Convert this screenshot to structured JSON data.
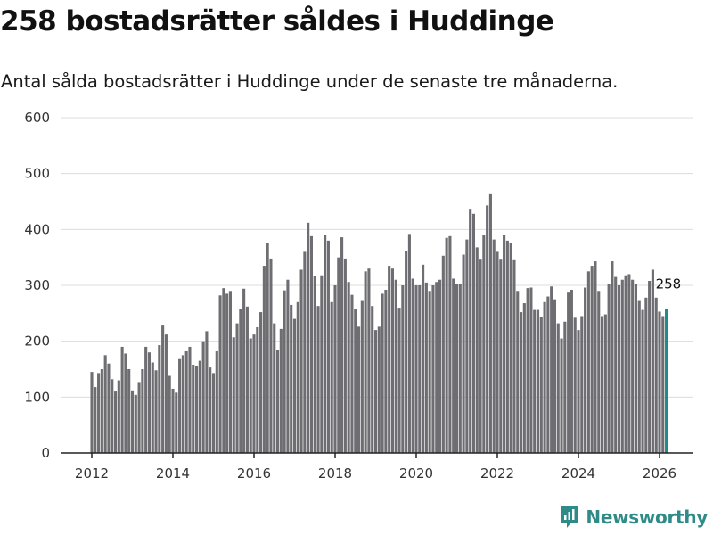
{
  "title": "258 bostadsrätter såldes i Huddinge",
  "subtitle": "Antal sålda bostadsrätter i Huddinge under de senaste tre månaderna.",
  "brand": {
    "name": "Newsworthy",
    "icon": "newsworthy-logo-icon",
    "color": "#2e8b87"
  },
  "chart_data": {
    "type": "bar",
    "ylim": [
      0,
      600
    ],
    "yticks": [
      0,
      100,
      200,
      300,
      400,
      500,
      600
    ],
    "xticks": [
      2012,
      2014,
      2016,
      2018,
      2020,
      2022,
      2024,
      2026
    ],
    "x_start_year": 2012,
    "x_start_month": 1,
    "x_end_year": 2026,
    "x_end_month": 2,
    "bar_color": "#6e6d72",
    "highlight_color": "#1f8a87",
    "highlight_label": "258",
    "grid": true,
    "values": [
      145,
      118,
      143,
      150,
      175,
      160,
      132,
      110,
      130,
      190,
      178,
      150,
      112,
      104,
      127,
      150,
      190,
      180,
      162,
      148,
      193,
      228,
      212,
      138,
      115,
      108,
      168,
      175,
      182,
      190,
      158,
      155,
      165,
      200,
      218,
      153,
      143,
      182,
      282,
      295,
      285,
      290,
      207,
      232,
      258,
      294,
      262,
      205,
      212,
      225,
      252,
      335,
      376,
      348,
      232,
      185,
      222,
      291,
      310,
      265,
      240,
      270,
      328,
      360,
      412,
      388,
      317,
      263,
      318,
      390,
      380,
      270,
      300,
      350,
      386,
      348,
      306,
      283,
      258,
      226,
      272,
      325,
      330,
      263,
      220,
      226,
      285,
      292,
      335,
      330,
      310,
      260,
      300,
      362,
      392,
      312,
      300,
      300,
      337,
      305,
      290,
      300,
      306,
      310,
      353,
      385,
      388,
      312,
      302,
      302,
      355,
      382,
      437,
      428,
      368,
      346,
      390,
      443,
      463,
      382,
      360,
      346,
      390,
      380,
      376,
      345,
      290,
      252,
      268,
      295,
      296,
      256,
      256,
      244,
      270,
      280,
      298,
      275,
      232,
      205,
      235,
      287,
      292,
      242,
      220,
      245,
      296,
      325,
      335,
      343,
      290,
      245,
      248,
      302,
      343,
      315,
      300,
      310,
      318,
      320,
      310,
      302,
      272,
      256,
      278,
      308,
      328,
      278,
      253,
      245,
      258
    ]
  }
}
